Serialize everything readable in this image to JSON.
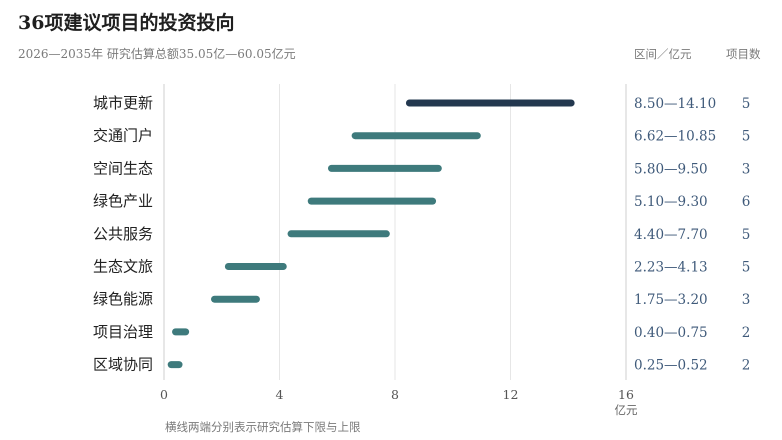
{
  "header": {
    "title": "36项建议项目的投资投向",
    "subtitle": "2026—2035年  研究估算总额35.05亿—60.05亿元",
    "range_column_header": "区间／亿元",
    "count_column_header": "项目数"
  },
  "footnote": "横线两端分别表示研究估算下限与上限",
  "colors": {
    "highlight": "#23384f",
    "bar": "#3e7a7c",
    "grid": "#e6e6e6",
    "axis": "#cfcfcf",
    "value_text": "#3f5a7a"
  },
  "chart_data": {
    "type": "range-bar",
    "title": "36项建议项目的投资投向",
    "subtitle": "2026—2035年  研究估算总额35.05亿—60.05亿元",
    "xlabel": "亿元",
    "xlim": [
      0,
      16
    ],
    "xticks": [
      0,
      4,
      8,
      12,
      16
    ],
    "grid": "vertical",
    "categories": [
      "城市更新",
      "交通门户",
      "空间生态",
      "绿色产业",
      "公共服务",
      "生态文旅",
      "绿色能源",
      "项目治理",
      "区域协同"
    ],
    "low": [
      8.5,
      6.62,
      5.8,
      5.1,
      4.4,
      2.23,
      1.75,
      0.4,
      0.25
    ],
    "high": [
      14.1,
      10.85,
      9.5,
      9.3,
      7.7,
      4.13,
      3.2,
      0.75,
      0.52
    ],
    "range_labels": [
      "8.50—14.10",
      "6.62—10.85",
      "5.80—9.50",
      "5.10—9.30",
      "4.40—7.70",
      "2.23—4.13",
      "1.75—3.20",
      "0.40—0.75",
      "0.25—0.52"
    ],
    "project_counts": [
      5,
      5,
      3,
      6,
      5,
      5,
      3,
      2,
      2
    ],
    "highlighted_category": "城市更新"
  }
}
